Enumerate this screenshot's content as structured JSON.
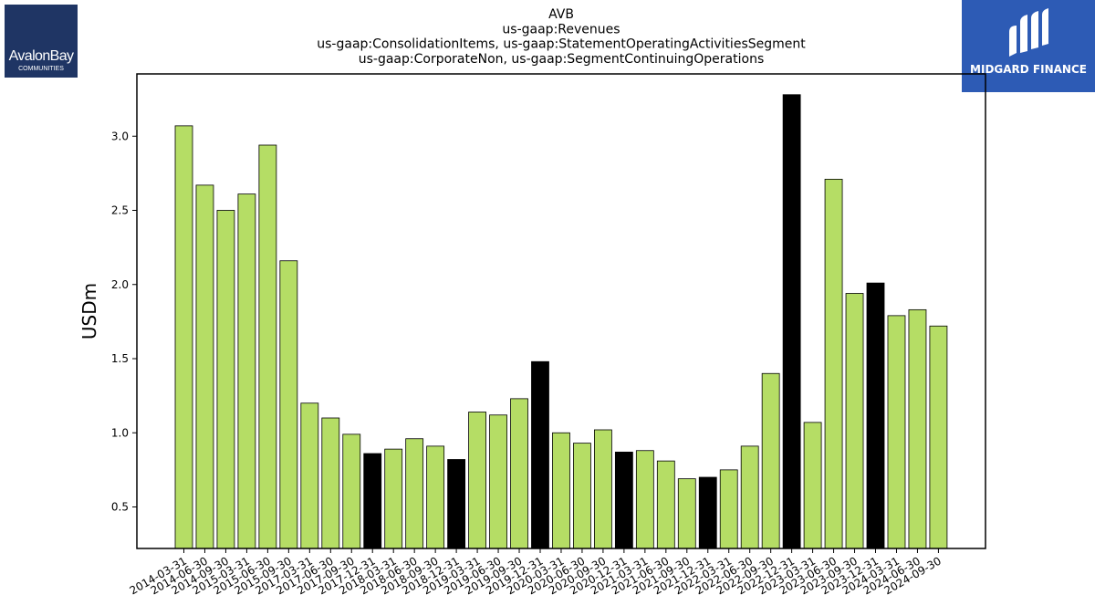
{
  "logos": {
    "left": {
      "name": "AvalonBay",
      "sub": "COMMUNITIES"
    },
    "right": {
      "name": "MIDGARD FINANCE"
    }
  },
  "colors": {
    "bar_default": "#b5dd65",
    "bar_highlight": "#000000",
    "bar_edge": "#000000"
  },
  "chart_data": {
    "type": "bar",
    "title": [
      "AVB",
      "us-gaap:Revenues",
      "us-gaap:ConsolidationItems, us-gaap:StatementOperatingActivitiesSegment",
      "us-gaap:CorporateNon, us-gaap:SegmentContinuingOperations"
    ],
    "xlabel": "",
    "ylabel": "USDm",
    "ylim": [
      0.22,
      3.42
    ],
    "yticks": [
      0.5,
      1.0,
      1.5,
      2.0,
      2.5,
      3.0
    ],
    "grid": false,
    "categories": [
      "2014-03-31",
      "2014-06-30",
      "2014-09-30",
      "2015-03-31",
      "2015-06-30",
      "2015-09-30",
      "2017-03-31",
      "2017-06-30",
      "2017-09-30",
      "2017-12-31",
      "2018-03-31",
      "2018-06-30",
      "2018-09-30",
      "2018-12-31",
      "2019-03-31",
      "2019-06-30",
      "2019-09-30",
      "2019-12-31",
      "2020-03-31",
      "2020-06-30",
      "2020-09-30",
      "2020-12-31",
      "2021-03-31",
      "2021-06-30",
      "2021-09-30",
      "2021-12-31",
      "2022-03-31",
      "2022-06-30",
      "2022-09-30",
      "2022-12-31",
      "2023-03-31",
      "2023-06-30",
      "2023-09-30",
      "2023-12-31",
      "2024-03-31",
      "2024-06-30",
      "2024-09-30"
    ],
    "values": [
      3.07,
      2.67,
      2.5,
      2.61,
      2.94,
      2.16,
      1.2,
      1.1,
      0.99,
      0.86,
      0.89,
      0.96,
      0.91,
      0.82,
      1.14,
      1.12,
      1.23,
      1.48,
      1.0,
      0.93,
      1.02,
      0.87,
      0.88,
      0.81,
      0.69,
      0.7,
      0.75,
      0.91,
      1.4,
      3.28,
      1.07,
      2.71,
      1.94,
      2.01,
      1.79,
      1.83,
      1.72
    ],
    "highlight": [
      false,
      false,
      false,
      false,
      false,
      false,
      false,
      false,
      false,
      true,
      false,
      false,
      false,
      true,
      false,
      false,
      false,
      true,
      false,
      false,
      false,
      true,
      false,
      false,
      false,
      true,
      false,
      false,
      false,
      true,
      false,
      false,
      false,
      true,
      false,
      false,
      false
    ]
  }
}
